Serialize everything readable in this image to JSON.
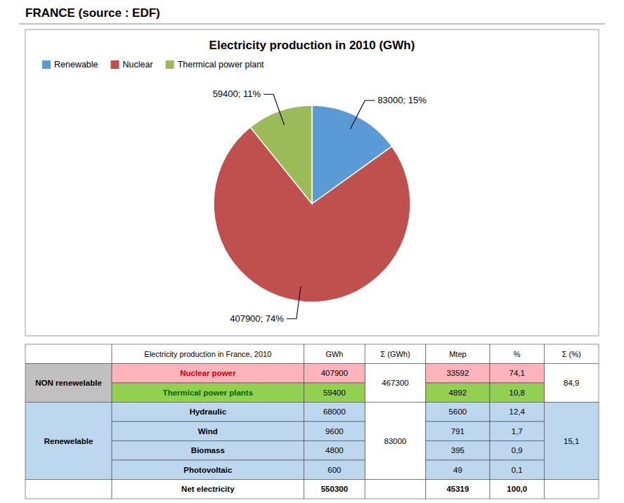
{
  "title": "FRANCE (source : EDF)",
  "chart_data": [
    {
      "type": "pie",
      "title": "Electricity production in 2010 (GWh)",
      "categories": [
        "Renewable",
        "Nuclear",
        "Thermical power plant"
      ],
      "values": [
        83000,
        407900,
        59400
      ],
      "colors": [
        "#5B9BD5",
        "#C0504D",
        "#9BBB59"
      ],
      "value_labels": [
        "83000; 15%",
        "407900; 74%",
        "59400; 11%"
      ],
      "data_labels": true,
      "legend": "top-left"
    },
    {
      "type": "table",
      "background": "#FFFFFF",
      "header": [
        "Electricity production in France, 2010",
        "GWh",
        "Σ (GWh)",
        "Mtep",
        "%",
        "Σ (%)"
      ],
      "groups": [
        {
          "label": "NON renewelable",
          "color": "#C0C0C0",
          "sigma_gwh": "467300",
          "sigma_pct": "84,9",
          "sigma_pct_color": "#FFFFFF",
          "rows": [
            {
              "cells": [
                "Nuclear power",
                "407900",
                "33592",
                "74,1"
              ],
              "color": "#FFB3BB",
              "text_color": "#CC0000"
            },
            {
              "cells": [
                "Thermical power plants",
                "59400",
                "4892",
                "10,8"
              ],
              "color": "#92D050",
              "text_color": "#006600"
            }
          ]
        },
        {
          "label": "Renewelable",
          "color": "#BDD7EE",
          "sigma_gwh": "83000",
          "sigma_pct": "15,1",
          "sigma_pct_color": "#BDD7EE",
          "rows": [
            {
              "cells": [
                "Hydraulic",
                "68000",
                "5600",
                "12,4"
              ],
              "color": "#BDD7EE"
            },
            {
              "cells": [
                "Wind",
                "9600",
                "791",
                "1,7"
              ],
              "color": "#BDD7EE"
            },
            {
              "cells": [
                "Biomass",
                "4800",
                "395",
                "0,9"
              ],
              "color": "#BDD7EE"
            },
            {
              "cells": [
                "Photovoltaic",
                "600",
                "49",
                "0,1"
              ],
              "color": "#BDD7EE"
            }
          ]
        }
      ],
      "total_row": [
        "Net electricity",
        "550300",
        "45319",
        "100,0"
      ]
    }
  ]
}
